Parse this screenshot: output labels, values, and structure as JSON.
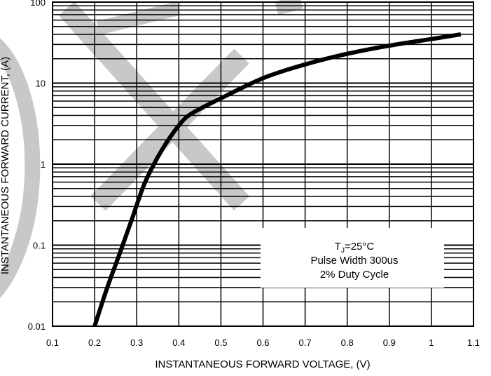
{
  "chart_data": {
    "type": "line",
    "title": "",
    "xlabel": "INSTANTANEOUS FORWARD VOLTAGE, (V)",
    "ylabel": "INSTANTANEOUS FORWARD CURRENT, (A)",
    "xlim": [
      0.1,
      1.1
    ],
    "ylim": [
      0.01,
      100
    ],
    "yscale": "log",
    "grid": true,
    "x_ticks": [
      "0.1",
      "0.2",
      "0.3",
      "0.4",
      "0.5",
      "0.6",
      "0.7",
      "0.8",
      "0.9",
      "1",
      "1.1"
    ],
    "y_ticks": [
      "0.01",
      "0.1",
      "1",
      "10",
      "100"
    ],
    "annotation": {
      "line1_main": "T",
      "line1_sub": "J",
      "line1_rest": "=25°C",
      "line2": "Pulse Width 300us",
      "line3": "2% Duty Cycle"
    },
    "series": [
      {
        "x": [
          0.2,
          0.23,
          0.26,
          0.29,
          0.32,
          0.36,
          0.4,
          0.43,
          0.5,
          0.6,
          0.7,
          0.8,
          0.9,
          1.0,
          1.07
        ],
        "y": [
          0.01,
          0.03,
          0.08,
          0.22,
          0.6,
          1.5,
          3.0,
          4.2,
          6.5,
          11.5,
          17.0,
          23.0,
          29.0,
          35.0,
          40.0
        ]
      }
    ],
    "colors": {
      "curve": "#000000",
      "grid": "#000000",
      "watermark": "#c8c8c8"
    }
  }
}
